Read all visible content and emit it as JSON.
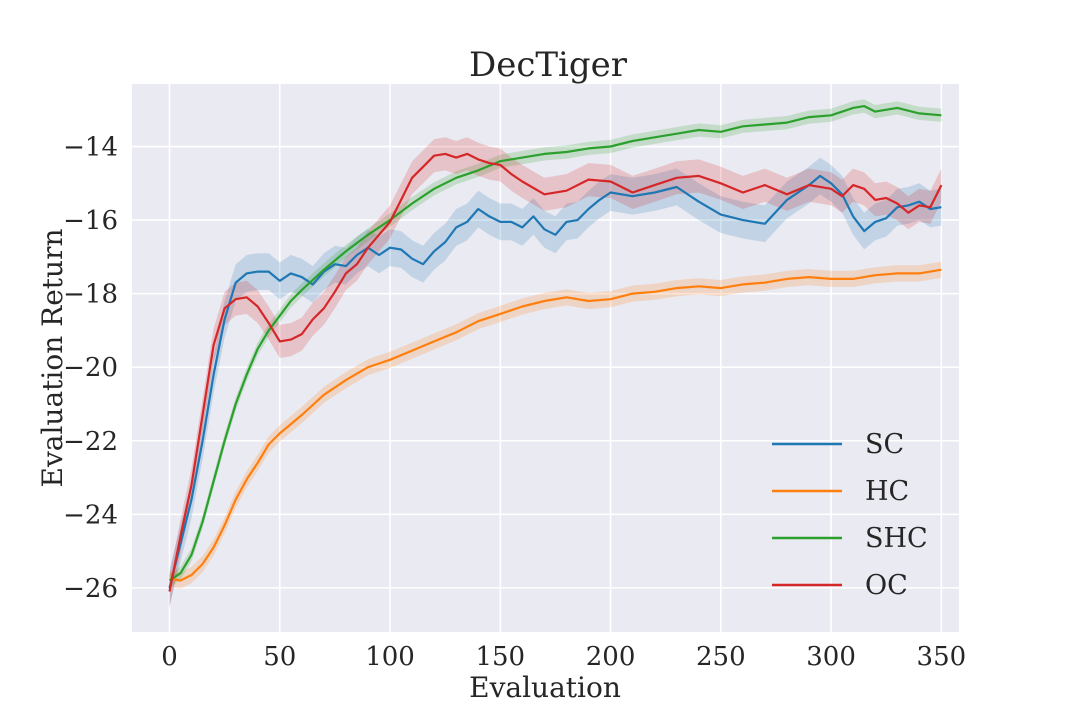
{
  "chart_data": {
    "type": "line",
    "title": "DecTiger",
    "xlabel": "Evaluation",
    "ylabel": "Evaluation Return",
    "xlim": [
      -17,
      358
    ],
    "ylim": [
      -27.2,
      -12.3
    ],
    "xticks": [
      0,
      50,
      100,
      150,
      200,
      250,
      300,
      350
    ],
    "yticks": [
      -26,
      -24,
      -22,
      -20,
      -18,
      -16,
      -14
    ],
    "xtick_labels": [
      "0",
      "50",
      "100",
      "150",
      "200",
      "250",
      "300",
      "350"
    ],
    "ytick_labels": [
      "−26",
      "−24",
      "−22",
      "−20",
      "−18",
      "−16",
      "−14"
    ],
    "grid": true,
    "legend_position": "bottom-right",
    "series": [
      {
        "name": "SC",
        "color": "#1f77b4",
        "band": 0.5,
        "x": [
          0,
          5,
          10,
          15,
          20,
          25,
          30,
          35,
          40,
          45,
          50,
          55,
          60,
          65,
          70,
          75,
          80,
          85,
          90,
          95,
          100,
          105,
          110,
          115,
          120,
          125,
          130,
          135,
          140,
          145,
          150,
          155,
          160,
          165,
          170,
          175,
          180,
          185,
          190,
          195,
          200,
          210,
          220,
          230,
          240,
          250,
          260,
          270,
          280,
          290,
          295,
          300,
          305,
          310,
          315,
          320,
          325,
          330,
          335,
          340,
          345,
          350
        ],
        "y": [
          -26.0,
          -24.8,
          -23.6,
          -22.0,
          -20.2,
          -18.7,
          -17.7,
          -17.45,
          -17.4,
          -17.4,
          -17.65,
          -17.45,
          -17.55,
          -17.75,
          -17.4,
          -17.2,
          -17.25,
          -16.95,
          -16.75,
          -16.95,
          -16.75,
          -16.8,
          -17.05,
          -17.2,
          -16.85,
          -16.6,
          -16.2,
          -16.05,
          -15.7,
          -15.9,
          -16.05,
          -16.05,
          -16.2,
          -15.9,
          -16.25,
          -16.4,
          -16.05,
          -16.0,
          -15.7,
          -15.45,
          -15.25,
          -15.35,
          -15.25,
          -15.1,
          -15.5,
          -15.85,
          -16.0,
          -16.1,
          -15.45,
          -15.05,
          -14.8,
          -15.0,
          -15.3,
          -15.9,
          -16.3,
          -16.05,
          -15.95,
          -15.65,
          -15.6,
          -15.5,
          -15.7,
          -15.65
        ]
      },
      {
        "name": "HC",
        "color": "#ff7f0e",
        "band": 0.22,
        "x": [
          0,
          5,
          10,
          15,
          20,
          25,
          30,
          35,
          40,
          45,
          50,
          60,
          70,
          80,
          90,
          100,
          110,
          120,
          130,
          140,
          150,
          160,
          170,
          180,
          190,
          200,
          210,
          220,
          230,
          240,
          250,
          260,
          270,
          280,
          290,
          300,
          310,
          320,
          330,
          340,
          350
        ],
        "y": [
          -25.75,
          -25.8,
          -25.65,
          -25.35,
          -24.9,
          -24.3,
          -23.6,
          -23.05,
          -22.6,
          -22.1,
          -21.8,
          -21.3,
          -20.75,
          -20.35,
          -20.0,
          -19.8,
          -19.55,
          -19.3,
          -19.05,
          -18.75,
          -18.55,
          -18.35,
          -18.2,
          -18.1,
          -18.2,
          -18.15,
          -18.0,
          -17.95,
          -17.85,
          -17.8,
          -17.85,
          -17.75,
          -17.7,
          -17.6,
          -17.55,
          -17.6,
          -17.6,
          -17.5,
          -17.45,
          -17.45,
          -17.35
        ]
      },
      {
        "name": "SHC",
        "color": "#2ca02c",
        "band": 0.18,
        "x": [
          0,
          5,
          10,
          15,
          20,
          25,
          30,
          35,
          40,
          45,
          50,
          55,
          60,
          70,
          80,
          90,
          100,
          110,
          120,
          130,
          140,
          150,
          160,
          170,
          180,
          190,
          200,
          210,
          220,
          230,
          240,
          250,
          260,
          270,
          280,
          290,
          300,
          310,
          315,
          320,
          330,
          340,
          350
        ],
        "y": [
          -25.8,
          -25.6,
          -25.1,
          -24.2,
          -23.1,
          -22.0,
          -21.0,
          -20.2,
          -19.5,
          -19.0,
          -18.6,
          -18.2,
          -17.9,
          -17.35,
          -16.85,
          -16.4,
          -16.0,
          -15.55,
          -15.15,
          -14.85,
          -14.65,
          -14.4,
          -14.3,
          -14.2,
          -14.15,
          -14.05,
          -14.0,
          -13.85,
          -13.75,
          -13.65,
          -13.55,
          -13.6,
          -13.45,
          -13.4,
          -13.35,
          -13.2,
          -13.15,
          -12.95,
          -12.9,
          -13.05,
          -12.95,
          -13.1,
          -13.15
        ]
      },
      {
        "name": "OC",
        "color": "#d62728",
        "band": 0.45,
        "x": [
          0,
          5,
          10,
          15,
          20,
          25,
          30,
          35,
          40,
          45,
          50,
          55,
          60,
          65,
          70,
          75,
          80,
          85,
          90,
          95,
          100,
          105,
          110,
          115,
          120,
          125,
          130,
          135,
          140,
          145,
          150,
          155,
          160,
          170,
          180,
          190,
          200,
          210,
          220,
          230,
          240,
          250,
          260,
          270,
          280,
          290,
          300,
          305,
          310,
          315,
          320,
          325,
          330,
          335,
          340,
          345,
          350
        ],
        "y": [
          -26.1,
          -24.6,
          -23.2,
          -21.3,
          -19.4,
          -18.4,
          -18.15,
          -18.1,
          -18.35,
          -18.8,
          -19.3,
          -19.25,
          -19.1,
          -18.7,
          -18.4,
          -17.95,
          -17.45,
          -17.2,
          -16.75,
          -16.4,
          -16.05,
          -15.45,
          -14.85,
          -14.55,
          -14.25,
          -14.2,
          -14.3,
          -14.2,
          -14.35,
          -14.45,
          -14.5,
          -14.75,
          -14.95,
          -15.3,
          -15.2,
          -14.9,
          -14.95,
          -15.25,
          -15.05,
          -14.85,
          -14.8,
          -15.0,
          -15.25,
          -15.05,
          -15.3,
          -15.05,
          -15.15,
          -15.35,
          -15.05,
          -15.15,
          -15.45,
          -15.4,
          -15.55,
          -15.8,
          -15.6,
          -15.65,
          -15.05
        ]
      }
    ]
  }
}
